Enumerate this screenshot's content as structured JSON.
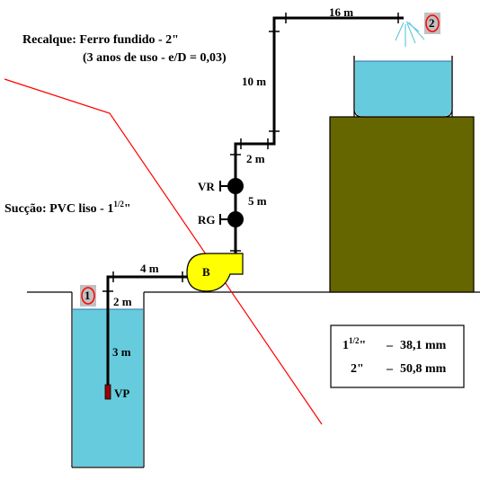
{
  "recalque": {
    "line1": "Recalque: Ferro fundido - 2\"",
    "line2": "(3 anos de uso - e/D = 0,03)"
  },
  "succao": {
    "text": "Sucção: PVC liso - 1",
    "sup": "1/2",
    "suffix": "\""
  },
  "lengths": {
    "top": "16 m",
    "riser_upper": "10 m",
    "offset": "2 m",
    "riser_lower": "5 m",
    "horizontal": "4 m",
    "suction_vertical": "2 m",
    "submerged": "3 m"
  },
  "components": {
    "pump": "B",
    "check_valve": "VR",
    "gate_valve": "RG",
    "foot_valve": "VP"
  },
  "points": {
    "p1": "1",
    "p2": "2"
  },
  "legend": {
    "row1": {
      "size": "1",
      "sup": "1/2",
      "quote": "\"",
      "dash": "–",
      "value": "38,1 mm"
    },
    "row2": {
      "size": "2\"",
      "dash": "–",
      "value": "50,8 mm"
    }
  },
  "colors": {
    "water": "#66ccdd",
    "tank_stand": "#666600",
    "pump": "#ffff00",
    "energy_line": "#ff0000",
    "foot_valve": "#990000",
    "marker_box": "#c0c0c0",
    "marker_ring": "#ff0000"
  }
}
